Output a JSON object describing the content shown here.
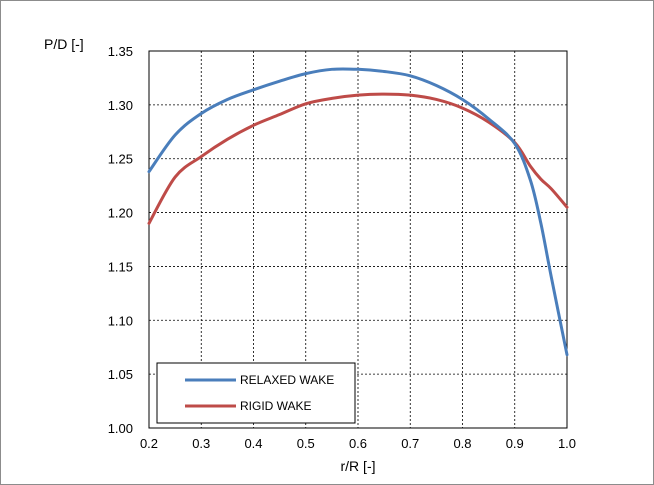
{
  "chart_data": {
    "type": "line",
    "title": "",
    "xlabel": "r/R [-]",
    "ylabel": "P/D [-]",
    "xlim": [
      0.2,
      1.0
    ],
    "ylim": [
      1.0,
      1.35
    ],
    "x_ticks": [
      "0.2",
      "0.3",
      "0.4",
      "0.5",
      "0.6",
      "0.7",
      "0.8",
      "0.9",
      "1.0"
    ],
    "y_ticks": [
      "1.00",
      "1.05",
      "1.10",
      "1.15",
      "1.20",
      "1.25",
      "1.30",
      "1.35"
    ],
    "grid": true,
    "legend_position": "bottom-left",
    "series": [
      {
        "name": "RELAXED WAKE",
        "color": "#4a7ebb",
        "x": [
          0.2,
          0.25,
          0.3,
          0.35,
          0.4,
          0.45,
          0.5,
          0.55,
          0.6,
          0.65,
          0.7,
          0.75,
          0.8,
          0.85,
          0.9,
          0.93,
          0.95,
          0.97,
          1.0
        ],
        "y": [
          1.238,
          1.272,
          1.292,
          1.305,
          1.314,
          1.322,
          1.329,
          1.333,
          1.333,
          1.331,
          1.327,
          1.318,
          1.305,
          1.287,
          1.264,
          1.23,
          1.19,
          1.14,
          1.068
        ]
      },
      {
        "name": "RIGID WAKE",
        "color": "#be4b48",
        "x": [
          0.2,
          0.25,
          0.3,
          0.35,
          0.4,
          0.45,
          0.5,
          0.55,
          0.6,
          0.65,
          0.7,
          0.75,
          0.8,
          0.85,
          0.9,
          0.93,
          0.95,
          0.97,
          1.0
        ],
        "y": [
          1.19,
          1.233,
          1.252,
          1.268,
          1.281,
          1.291,
          1.301,
          1.306,
          1.309,
          1.31,
          1.309,
          1.305,
          1.297,
          1.284,
          1.265,
          1.243,
          1.231,
          1.222,
          1.205
        ]
      }
    ]
  }
}
